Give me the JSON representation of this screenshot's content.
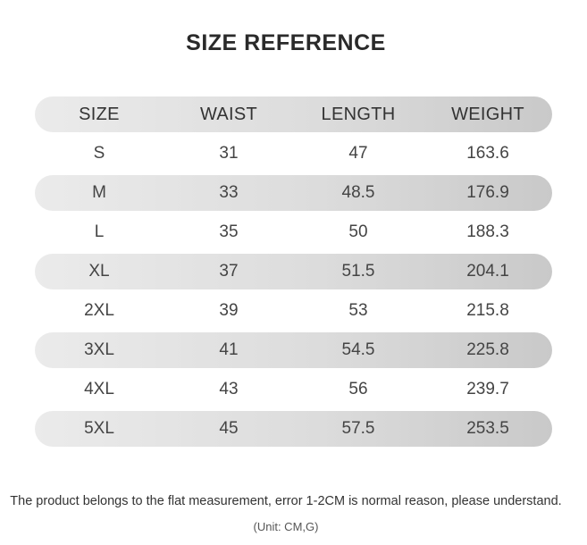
{
  "title": "SIZE REFERENCE",
  "table": {
    "headers": [
      "SIZE",
      "WAIST",
      "LENGTH",
      "WEIGHT"
    ],
    "rows": [
      [
        "S",
        "31",
        "47",
        "163.6"
      ],
      [
        "M",
        "33",
        "48.5",
        "176.9"
      ],
      [
        "L",
        "35",
        "50",
        "188.3"
      ],
      [
        "XL",
        "37",
        "51.5",
        "204.1"
      ],
      [
        "2XL",
        "39",
        "53",
        "215.8"
      ],
      [
        "3XL",
        "41",
        "54.5",
        "225.8"
      ],
      [
        "4XL",
        "43",
        "56",
        "239.7"
      ],
      [
        "5XL",
        "45",
        "57.5",
        "253.5"
      ]
    ]
  },
  "note": "The product belongs to the flat measurement, error 1-2CM is normal reason, please understand.",
  "unit": "(Unit: CM,G)",
  "colors": {
    "band_light": "#ebebeb",
    "band_dark": "#c9c9c9",
    "text": "#444444"
  }
}
